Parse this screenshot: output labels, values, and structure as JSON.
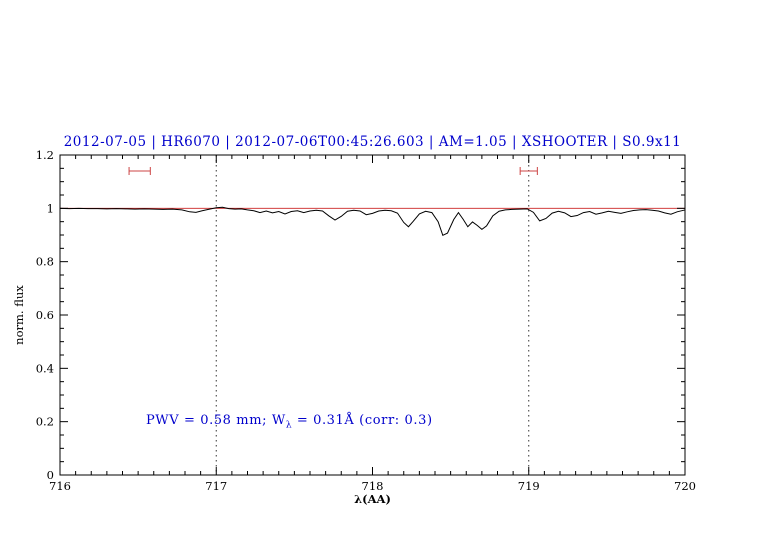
{
  "page": {
    "background": "#ffffff"
  },
  "chart_data": {
    "type": "line",
    "title": "2012-07-05 | HR6070 | 2012-07-06T00:45:26.603 | AM=1.05 | XSHOOTER | S0.9x11",
    "title_color": "#0000cc",
    "xlabel": "λ(AA)",
    "ylabel": "norm. flux",
    "xlim": [
      716,
      720
    ],
    "ylim": [
      0,
      1.2
    ],
    "x_major_ticks": [
      716,
      717,
      718,
      719,
      720
    ],
    "x_tick_labels": [
      "716",
      "717",
      "718",
      "719",
      "720"
    ],
    "x_minor_step": 0.1,
    "y_major_ticks": [
      0,
      0.2,
      0.4,
      0.6,
      0.8,
      1,
      1.2
    ],
    "y_tick_labels": [
      "0",
      "0.2",
      "0.4",
      "0.6",
      "0.8",
      "1",
      "1.2"
    ],
    "y_minor_step": 0.05,
    "grid_vlines": [
      717,
      719
    ],
    "grid_style": "dotted",
    "grid_color": "#333333",
    "continuum": {
      "y": 1.0,
      "color": "#cc2222"
    },
    "marker_color": "#cc4444",
    "telluric_markers": [
      {
        "x_center": 716.51,
        "half_width": 0.068,
        "y": 1.14
      },
      {
        "x_center": 719.0,
        "half_width": 0.055,
        "y": 1.14
      }
    ],
    "annotation": {
      "prefix": "PWV = 0.58 mm; W",
      "sub": "λ",
      "suffix": " = 0.31Å (corr: 0.3)",
      "x": 716.55,
      "y": 0.2,
      "color": "#0000cc"
    },
    "series": [
      {
        "name": "spectrum",
        "color": "#000000",
        "points": [
          [
            716.0,
            1.0
          ],
          [
            716.06,
            0.999
          ],
          [
            716.12,
            1.0
          ],
          [
            716.18,
            0.999
          ],
          [
            716.24,
            0.999
          ],
          [
            716.3,
            0.998
          ],
          [
            716.36,
            0.999
          ],
          [
            716.42,
            0.998
          ],
          [
            716.48,
            0.997
          ],
          [
            716.54,
            0.998
          ],
          [
            716.6,
            0.997
          ],
          [
            716.66,
            0.996
          ],
          [
            716.72,
            0.997
          ],
          [
            716.78,
            0.994
          ],
          [
            716.83,
            0.987
          ],
          [
            716.87,
            0.985
          ],
          [
            716.91,
            0.991
          ],
          [
            716.95,
            0.996
          ],
          [
            717.0,
            1.002
          ],
          [
            717.04,
            1.004
          ],
          [
            717.08,
            0.999
          ],
          [
            717.12,
            0.997
          ],
          [
            717.16,
            0.998
          ],
          [
            717.2,
            0.994
          ],
          [
            717.24,
            0.991
          ],
          [
            717.28,
            0.984
          ],
          [
            717.32,
            0.99
          ],
          [
            717.36,
            0.983
          ],
          [
            717.4,
            0.988
          ],
          [
            717.44,
            0.979
          ],
          [
            717.48,
            0.988
          ],
          [
            717.52,
            0.991
          ],
          [
            717.56,
            0.984
          ],
          [
            717.6,
            0.99
          ],
          [
            717.64,
            0.993
          ],
          [
            717.68,
            0.99
          ],
          [
            717.72,
            0.972
          ],
          [
            717.76,
            0.956
          ],
          [
            717.8,
            0.97
          ],
          [
            717.84,
            0.989
          ],
          [
            717.88,
            0.993
          ],
          [
            717.92,
            0.99
          ],
          [
            717.96,
            0.976
          ],
          [
            718.0,
            0.981
          ],
          [
            718.04,
            0.99
          ],
          [
            718.08,
            0.993
          ],
          [
            718.12,
            0.991
          ],
          [
            718.16,
            0.982
          ],
          [
            718.2,
            0.947
          ],
          [
            718.23,
            0.931
          ],
          [
            718.26,
            0.951
          ],
          [
            718.3,
            0.979
          ],
          [
            718.34,
            0.989
          ],
          [
            718.38,
            0.984
          ],
          [
            718.42,
            0.95
          ],
          [
            718.45,
            0.899
          ],
          [
            718.48,
            0.907
          ],
          [
            718.52,
            0.958
          ],
          [
            718.55,
            0.984
          ],
          [
            718.58,
            0.959
          ],
          [
            718.61,
            0.931
          ],
          [
            718.64,
            0.949
          ],
          [
            718.67,
            0.936
          ],
          [
            718.7,
            0.921
          ],
          [
            718.73,
            0.934
          ],
          [
            718.77,
            0.972
          ],
          [
            718.81,
            0.989
          ],
          [
            718.85,
            0.994
          ],
          [
            718.89,
            0.996
          ],
          [
            718.94,
            0.997
          ],
          [
            718.99,
            0.998
          ],
          [
            719.03,
            0.985
          ],
          [
            719.07,
            0.953
          ],
          [
            719.11,
            0.962
          ],
          [
            719.15,
            0.982
          ],
          [
            719.19,
            0.989
          ],
          [
            719.23,
            0.983
          ],
          [
            719.27,
            0.969
          ],
          [
            719.31,
            0.973
          ],
          [
            719.35,
            0.984
          ],
          [
            719.39,
            0.988
          ],
          [
            719.43,
            0.978
          ],
          [
            719.47,
            0.983
          ],
          [
            719.51,
            0.989
          ],
          [
            719.55,
            0.985
          ],
          [
            719.59,
            0.981
          ],
          [
            719.63,
            0.987
          ],
          [
            719.67,
            0.992
          ],
          [
            719.71,
            0.994
          ],
          [
            719.75,
            0.995
          ],
          [
            719.79,
            0.993
          ],
          [
            719.83,
            0.99
          ],
          [
            719.87,
            0.983
          ],
          [
            719.91,
            0.978
          ],
          [
            719.95,
            0.987
          ],
          [
            720.0,
            0.994
          ]
        ]
      }
    ]
  }
}
